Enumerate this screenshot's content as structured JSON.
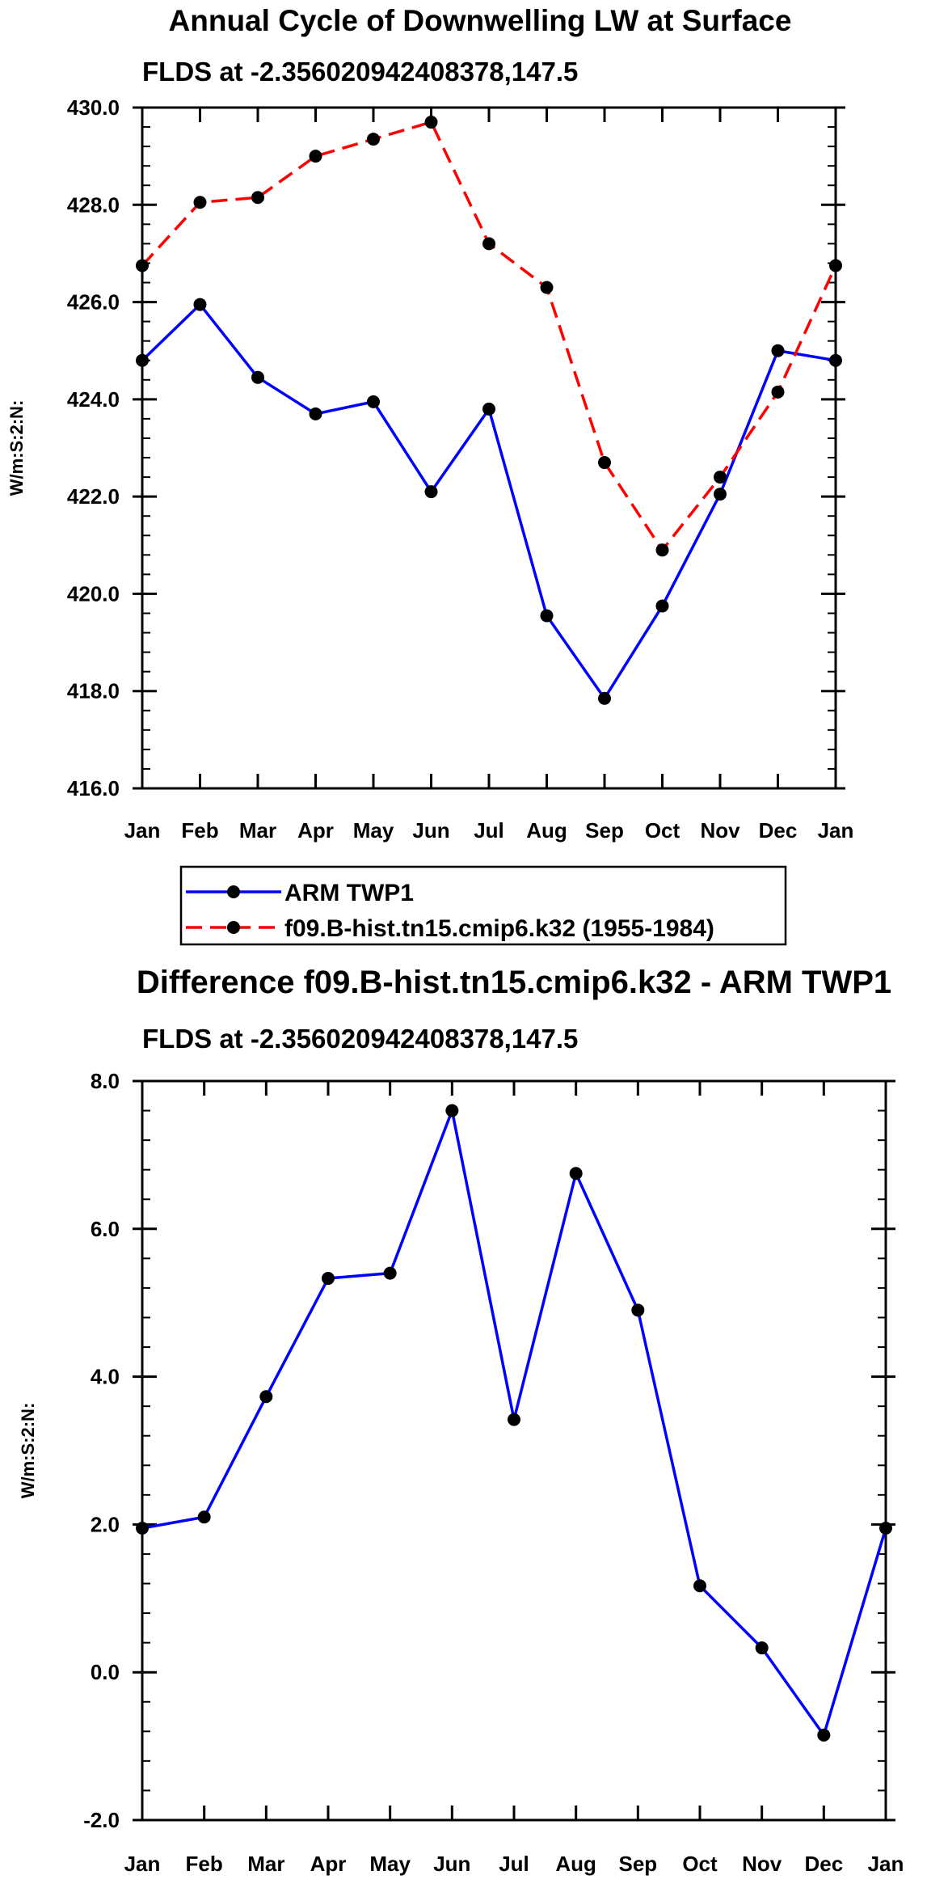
{
  "chart_data": [
    {
      "type": "line",
      "title": "Annual Cycle of Downwelling LW at Surface",
      "subtitle": "FLDS at -2.356020942408378,147.5",
      "xlabel": "",
      "ylabel": "W/m:S:2:N:",
      "categories": [
        "Jan",
        "Feb",
        "Mar",
        "Apr",
        "May",
        "Jun",
        "Jul",
        "Aug",
        "Sep",
        "Oct",
        "Nov",
        "Dec",
        "Jan"
      ],
      "ylim": [
        416.0,
        430.0
      ],
      "yticks": [
        "416.0",
        "418.0",
        "420.0",
        "422.0",
        "424.0",
        "426.0",
        "428.0",
        "430.0"
      ],
      "series": [
        {
          "name": "ARM TWP1",
          "color": "#0000ff",
          "dash": "solid",
          "values": [
            424.8,
            425.95,
            424.45,
            423.7,
            423.95,
            422.1,
            423.8,
            419.55,
            417.85,
            419.75,
            422.05,
            425.0,
            424.8
          ]
        },
        {
          "name": "f09.B-hist.tn15.cmip6.k32 (1955-1984)",
          "color": "#ff0000",
          "dash": "dashed",
          "values": [
            426.75,
            428.05,
            428.15,
            429.0,
            429.35,
            429.7,
            427.2,
            426.3,
            422.7,
            420.9,
            422.4,
            424.15,
            426.75
          ]
        }
      ],
      "legend": "below"
    },
    {
      "type": "line",
      "title": "Difference f09.B-hist.tn15.cmip6.k32 - ARM TWP1",
      "subtitle": "FLDS at -2.356020942408378,147.5",
      "xlabel": "",
      "ylabel": "W/m:S:2:N:",
      "categories": [
        "Jan",
        "Feb",
        "Mar",
        "Apr",
        "May",
        "Jun",
        "Jul",
        "Aug",
        "Sep",
        "Oct",
        "Nov",
        "Dec",
        "Jan"
      ],
      "ylim": [
        -2.0,
        8.0
      ],
      "yticks": [
        "-2.0",
        "0.0",
        "2.0",
        "4.0",
        "6.0",
        "8.0"
      ],
      "series": [
        {
          "name": "Difference",
          "color": "#0000ff",
          "dash": "solid",
          "values": [
            1.95,
            2.1,
            3.73,
            5.33,
            5.4,
            7.6,
            3.42,
            6.75,
            4.9,
            1.17,
            0.33,
            -0.85,
            1.95
          ]
        }
      ]
    }
  ],
  "style": {
    "marker_color": "#000000",
    "axis_color": "#000000"
  }
}
